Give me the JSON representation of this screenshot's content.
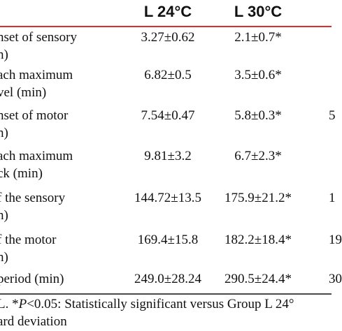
{
  "table": {
    "columns": [
      "L 24°C",
      "L 30°C"
    ],
    "rows": [
      {
        "label_lines": [
          "nset of sensory",
          "n)"
        ],
        "values": [
          "3.27±0.62",
          "2.1±0.7*"
        ],
        "partial": ""
      },
      {
        "label_lines": [
          "ach maximum",
          "vel (min)"
        ],
        "values": [
          "6.82±0.5",
          "3.5±0.6*"
        ],
        "partial": ""
      },
      {
        "label_lines": [
          "nset of motor",
          "n)"
        ],
        "values": [
          "7.54±0.47",
          "5.8±0.3*"
        ],
        "partial": "5"
      },
      {
        "label_lines": [
          "ach maximum",
          "ck (min)"
        ],
        "values": [
          "9.81±3.2",
          "6.7±2.3*"
        ],
        "partial": ""
      },
      {
        "label_lines": [
          "f the sensory",
          "n)"
        ],
        "values": [
          "144.72±13.5",
          "175.9±21.2*"
        ],
        "partial": "1"
      },
      {
        "label_lines": [
          "f the motor",
          "n)"
        ],
        "values": [
          "169.4±15.8",
          "182.2±18.4*"
        ],
        "partial": "19"
      },
      {
        "label_lines": [
          "period (min)"
        ],
        "values": [
          "249.0±28.24",
          "290.5±24.4*"
        ],
        "partial": "30"
      }
    ]
  },
  "footnote": {
    "line1_prefix": "L. *",
    "line1_p": "P",
    "line1_rest": "<0.05: Statistically significant versus Group L 24°",
    "line2": "ard deviation"
  },
  "colors": {
    "top_rule": "#d7312f",
    "bottom_rule": "#4a4a4a"
  }
}
